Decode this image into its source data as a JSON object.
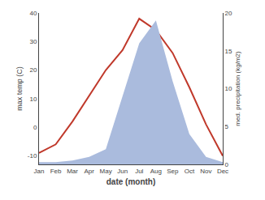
{
  "chart_data": {
    "type": "line",
    "categories": [
      "Jan",
      "Feb",
      "Mar",
      "Apr",
      "May",
      "Jun",
      "Jul",
      "Aug",
      "Sep",
      "Oct",
      "Nov",
      "Dec"
    ],
    "xlabel": "date (month)",
    "ylabel": "max temp (C)",
    "y2label": "med. precipitation (kg/m2)",
    "series": [
      {
        "type": "area",
        "axis": "y2",
        "color": "#aabbdd",
        "values": [
          0.3,
          0.3,
          0.5,
          1.0,
          2.0,
          9,
          16,
          19,
          11,
          4,
          1.0,
          0.3
        ]
      },
      {
        "type": "line",
        "color": "#c0392b",
        "values": [
          -9,
          -6,
          2,
          11,
          20,
          27,
          38,
          34,
          26,
          14,
          1,
          -10
        ]
      }
    ],
    "ylim": [
      -13,
      40
    ],
    "yticks": [
      -10,
      0,
      10,
      20,
      30,
      40
    ],
    "y2lim": [
      0,
      20
    ],
    "y2ticks": [
      0,
      5,
      10,
      15,
      20
    ],
    "grid": false
  }
}
